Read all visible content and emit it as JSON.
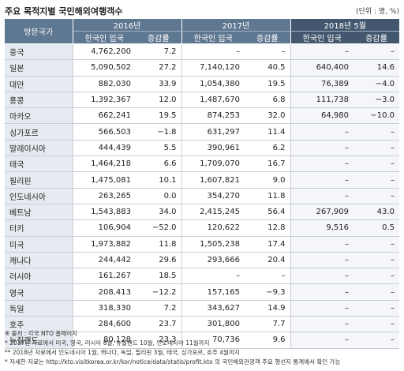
{
  "title": "주요 목적지별  국민해외여행객수",
  "unit": "(단위 : 명, %)",
  "headers": {
    "country": "방문국가",
    "y2016": "2016년",
    "y2017": "2017년",
    "y2018": "2018년 5월",
    "visitors": "한국인 입국",
    "growth": "증감률"
  },
  "rows": [
    {
      "country": "중국",
      "v2016": "4,762,200",
      "g2016": "7.2",
      "v2017": "–",
      "g2017": "–",
      "v2018": "–",
      "g2018": "–"
    },
    {
      "country": "일본",
      "v2016": "5,090,502",
      "g2016": "27.2",
      "v2017": "7,140,120",
      "g2017": "40.5",
      "v2018": "640,400",
      "g2018": "14.6"
    },
    {
      "country": "대만",
      "v2016": "882,030",
      "g2016": "33.9",
      "v2017": "1,054,380",
      "g2017": "19.5",
      "v2018": "76,389",
      "g2018": "−4.0"
    },
    {
      "country": "홍콩",
      "v2016": "1,392,367",
      "g2016": "12.0",
      "v2017": "1,487,670",
      "g2017": "6.8",
      "v2018": "111,738",
      "g2018": "−3.0"
    },
    {
      "country": "마카오",
      "v2016": "662,241",
      "g2016": "19.5",
      "v2017": "874,253",
      "g2017": "32.0",
      "v2018": "64,980",
      "g2018": "−10.0"
    },
    {
      "country": "싱가포르",
      "v2016": "566,503",
      "g2016": "−1.8",
      "v2017": "631,297",
      "g2017": "11.4",
      "v2018": "–",
      "g2018": "–"
    },
    {
      "country": "말레이시아",
      "v2016": "444,439",
      "g2016": "5.5",
      "v2017": "390,961",
      "g2017": "6.2",
      "v2018": "–",
      "g2018": "–"
    },
    {
      "country": "태국",
      "v2016": "1,464,218",
      "g2016": "6.6",
      "v2017": "1,709,070",
      "g2017": "16.7",
      "v2018": "–",
      "g2018": "–"
    },
    {
      "country": "필리핀",
      "v2016": "1,475,081",
      "g2016": "10.1",
      "v2017": "1,607,821",
      "g2017": "9.0",
      "v2018": "–",
      "g2018": "–"
    },
    {
      "country": "인도네시아",
      "v2016": "263,265",
      "g2016": "0.0",
      "v2017": "354,270",
      "g2017": "11.8",
      "v2018": "–",
      "g2018": "–"
    },
    {
      "country": "베트남",
      "v2016": "1,543,883",
      "g2016": "34.0",
      "v2017": "2,415,245",
      "g2017": "56.4",
      "v2018": "267,909",
      "g2018": "43.0"
    },
    {
      "country": "터키",
      "v2016": "106,904",
      "g2016": "−52.0",
      "v2017": "120,622",
      "g2017": "12.8",
      "v2018": "9,516",
      "g2018": "0.5"
    },
    {
      "country": "미국",
      "v2016": "1,973,882",
      "g2016": "11.8",
      "v2017": "1,505,238",
      "g2017": "17.4",
      "v2018": "–",
      "g2018": "–"
    },
    {
      "country": "캐나다",
      "v2016": "244,442",
      "g2016": "29.6",
      "v2017": "293,666",
      "g2017": "20.4",
      "v2018": "–",
      "g2018": "–"
    },
    {
      "country": "러시아",
      "v2016": "161,267",
      "g2016": "18.5",
      "v2017": "–",
      "g2017": "–",
      "v2018": "–",
      "g2018": "–"
    },
    {
      "country": "영국",
      "v2016": "208,413",
      "g2016": "−12.2",
      "v2017": "157,165",
      "g2017": "−9.3",
      "v2018": "–",
      "g2018": "–"
    },
    {
      "country": "독일",
      "v2016": "318,330",
      "g2016": "7.2",
      "v2017": "343,627",
      "g2017": "14.9",
      "v2018": "–",
      "g2018": "–"
    },
    {
      "country": "호주",
      "v2016": "284,600",
      "g2016": "23.7",
      "v2017": "301,800",
      "g2017": "7.7",
      "v2018": "–",
      "g2018": "–"
    },
    {
      "country": "뉴질랜드",
      "v2016": "80,128",
      "g2016": "23.3",
      "v2017": "70,736",
      "g2017": "9.6",
      "v2018": "–",
      "g2018": "–"
    }
  ],
  "notes": [
    "※ 출처 : 각국 NTO 홈페이지",
    "* 2017년 자료에서 미국, 영국, 러시아 8월, 뉴질랜드 10월, 인도네시아 11월까지",
    "** 2018년 자료에서 인도네시아 1월, 캐나다, 독일, 필리핀 3월, 태국, 싱가포르, 호주 4월까지",
    "* 자세한 자료는 http://kto.visitkorea.or.kr/kor/notice/data/statis/profit.kto 의 국민해외관광객 주요 행선지 통계에서 확인 가능"
  ]
}
